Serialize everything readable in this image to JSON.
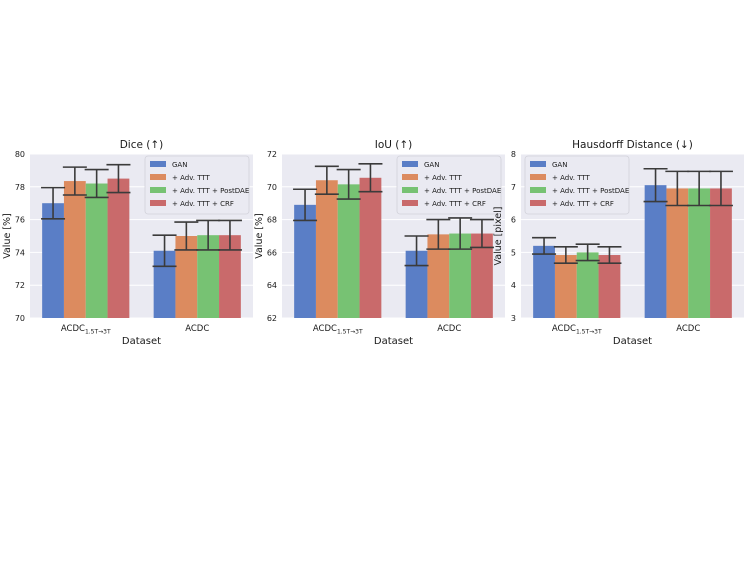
{
  "chart_data": [
    {
      "type": "bar",
      "title": "Dice (↑)",
      "xlabel": "Dataset",
      "ylabel": "Value [%]",
      "ylim": [
        70,
        80
      ],
      "yticks": [
        70,
        72,
        74,
        76,
        78,
        80
      ],
      "grid": true,
      "legend_position": "top-right",
      "categories": [
        {
          "base": "ACDC",
          "sub": "1.5T→3T"
        },
        {
          "base": "ACDC",
          "sub": ""
        }
      ],
      "series": [
        {
          "name": "GAN",
          "color": "#5a7ec6",
          "values": [
            77.0,
            74.1
          ],
          "err": [
            0.95,
            0.95
          ]
        },
        {
          "name": "+ Adv. TTT",
          "color": "#dc8b5f",
          "values": [
            78.35,
            75.0
          ],
          "err": [
            0.85,
            0.85
          ]
        },
        {
          "name": "+ Adv. TTT + PostDAE",
          "color": "#77c273",
          "values": [
            78.2,
            75.05
          ],
          "err": [
            0.85,
            0.9
          ]
        },
        {
          "name": "+ Adv. TTT + CRF",
          "color": "#c96a6b",
          "values": [
            78.5,
            75.05
          ],
          "err": [
            0.85,
            0.9
          ]
        }
      ]
    },
    {
      "type": "bar",
      "title": "IoU (↑)",
      "xlabel": "Dataset",
      "ylabel": "Value [%]",
      "ylim": [
        62,
        72
      ],
      "yticks": [
        62,
        64,
        66,
        68,
        70,
        72
      ],
      "grid": true,
      "legend_position": "top-right",
      "categories": [
        {
          "base": "ACDC",
          "sub": "1.5T→3T"
        },
        {
          "base": "ACDC",
          "sub": ""
        }
      ],
      "series": [
        {
          "name": "GAN",
          "color": "#5a7ec6",
          "values": [
            68.9,
            66.1
          ],
          "err": [
            0.95,
            0.9
          ]
        },
        {
          "name": "+ Adv. TTT",
          "color": "#dc8b5f",
          "values": [
            70.4,
            67.1
          ],
          "err": [
            0.85,
            0.9
          ]
        },
        {
          "name": "+ Adv. TTT + PostDAE",
          "color": "#77c273",
          "values": [
            70.15,
            67.15
          ],
          "err": [
            0.9,
            0.95
          ]
        },
        {
          "name": "+ Adv. TTT + CRF",
          "color": "#c96a6b",
          "values": [
            70.55,
            67.15
          ],
          "err": [
            0.85,
            0.85
          ]
        }
      ]
    },
    {
      "type": "bar",
      "title": "Hausdorff Distance (↓)",
      "xlabel": "Dataset",
      "ylabel": "Value [pixel]",
      "ylim": [
        3,
        8
      ],
      "yticks": [
        3,
        4,
        5,
        6,
        7,
        8
      ],
      "grid": true,
      "legend_position": "top-left",
      "categories": [
        {
          "base": "ACDC",
          "sub": "1.5T→3T"
        },
        {
          "base": "ACDC",
          "sub": ""
        }
      ],
      "series": [
        {
          "name": "GAN",
          "color": "#5a7ec6",
          "values": [
            5.2,
            7.05
          ],
          "err": [
            0.25,
            0.5
          ]
        },
        {
          "name": "+ Adv. TTT",
          "color": "#dc8b5f",
          "values": [
            4.92,
            6.95
          ],
          "err": [
            0.25,
            0.52
          ]
        },
        {
          "name": "+ Adv. TTT + PostDAE",
          "color": "#77c273",
          "values": [
            5.0,
            6.95
          ],
          "err": [
            0.25,
            0.52
          ]
        },
        {
          "name": "+ Adv. TTT + CRF",
          "color": "#c96a6b",
          "values": [
            4.92,
            6.95
          ],
          "err": [
            0.25,
            0.52
          ]
        }
      ]
    }
  ]
}
